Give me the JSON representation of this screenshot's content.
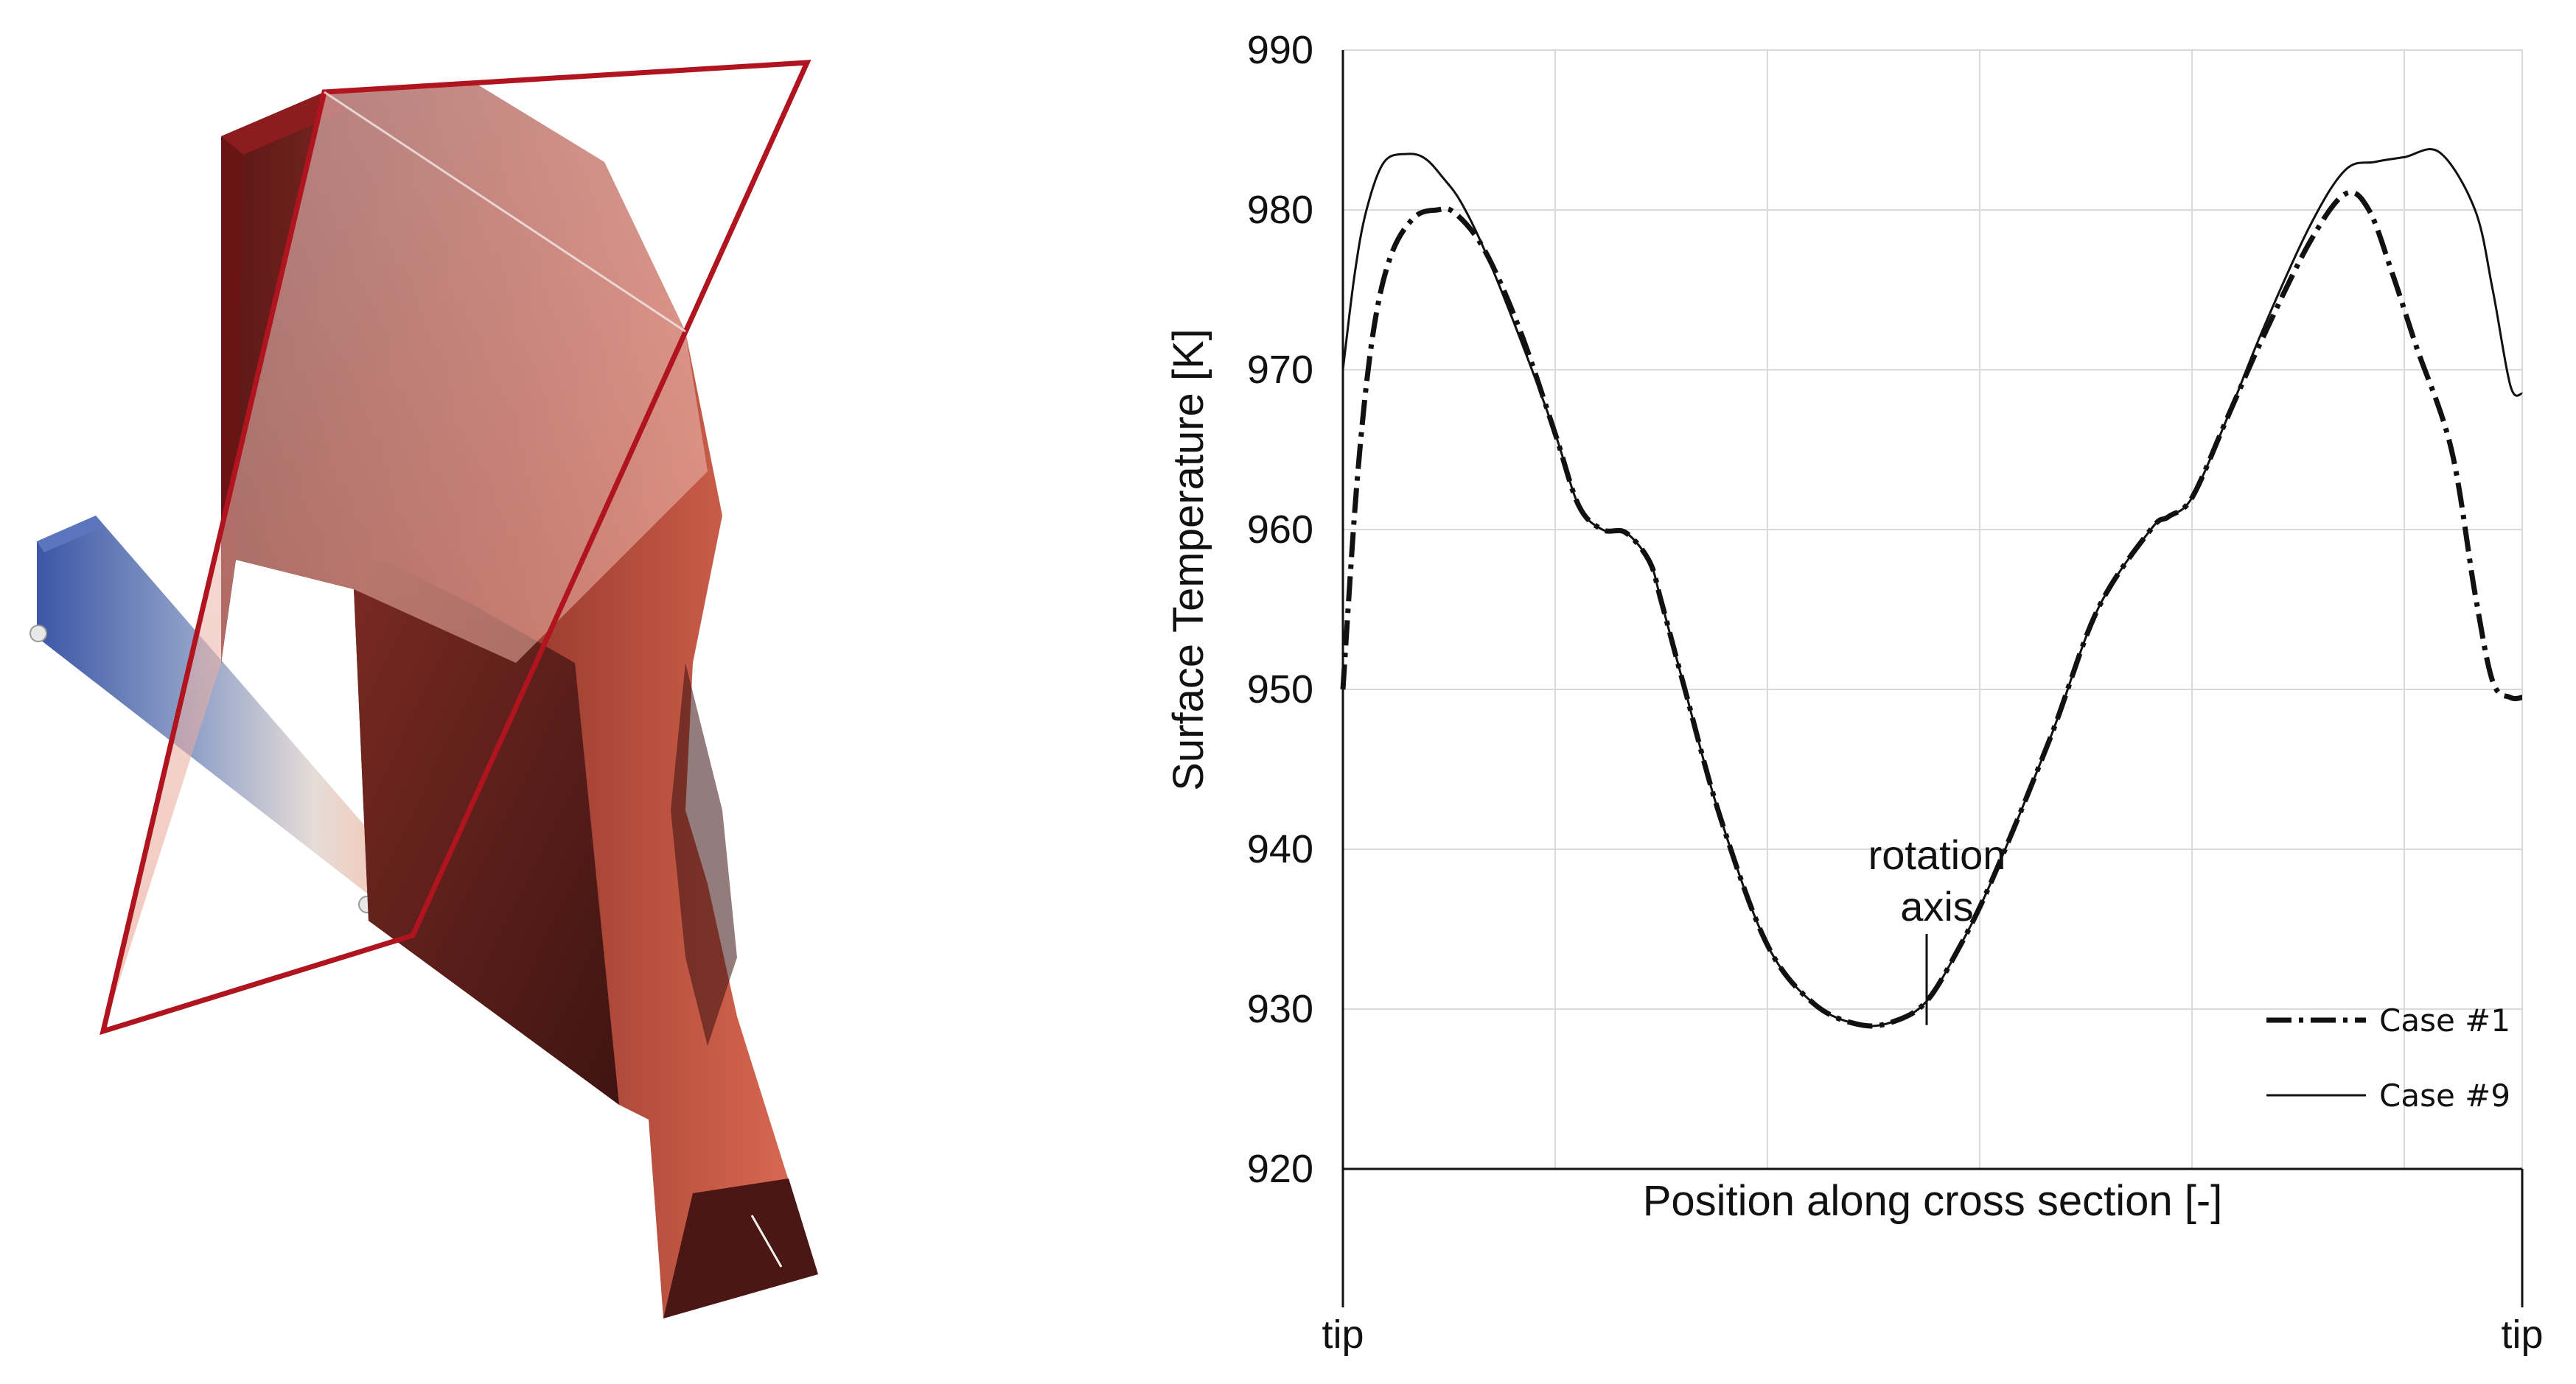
{
  "colors": {
    "frame_red": "#b0141e",
    "blade_dark": "#5a1a18",
    "blade_mid": "#b84a38",
    "blade_light": "#e0705a",
    "bar_blue": "#3d5aa8",
    "grid": "#d9d9d9"
  },
  "chart_data": {
    "type": "line",
    "title": "",
    "xlabel": "Position along cross section [-]",
    "ylabel": "Surface Temperature [K]",
    "ylim": [
      920,
      990
    ],
    "yticks": [
      920,
      930,
      940,
      950,
      960,
      970,
      980,
      990
    ],
    "xlim": [
      0,
      1
    ],
    "xtick_labels": [
      "tip",
      "tip"
    ],
    "x_grid_positions": [
      0.18,
      0.36,
      0.54,
      0.72,
      0.9
    ],
    "grid": true,
    "legend_position": "bottom-right",
    "annotation": {
      "text_line1": "rotation",
      "text_line2": "axis",
      "x": 0.495,
      "y": 929
    },
    "series": [
      {
        "name": "Case #1",
        "style": "dash-dot",
        "x": [
          0.0,
          0.012,
          0.025,
          0.04,
          0.06,
          0.08,
          0.095,
          0.12,
          0.15,
          0.18,
          0.2,
          0.22,
          0.24,
          0.26,
          0.27,
          0.29,
          0.32,
          0.36,
          0.4,
          0.44,
          0.47,
          0.495,
          0.52,
          0.55,
          0.6,
          0.64,
          0.685,
          0.7,
          0.72,
          0.75,
          0.78,
          0.82,
          0.85,
          0.87,
          0.89,
          0.91,
          0.94,
          0.96,
          0.975,
          0.99,
          1.0
        ],
        "y": [
          950,
          963,
          972,
          977,
          979.5,
          980,
          979.8,
          977.5,
          972.5,
          966,
          961.5,
          960,
          959.8,
          958,
          955.5,
          950,
          942,
          934,
          930.3,
          929,
          929.3,
          930.5,
          933.5,
          938,
          947,
          955,
          960,
          960.8,
          962,
          967,
          972,
          978,
          981,
          980,
          976,
          971.5,
          965,
          956,
          950.5,
          949.5,
          949.5
        ]
      },
      {
        "name": "Case #9",
        "style": "solid",
        "x": [
          0.0,
          0.01,
          0.02,
          0.035,
          0.055,
          0.07,
          0.085,
          0.1,
          0.12,
          0.15,
          0.18,
          0.2,
          0.22,
          0.24,
          0.26,
          0.27,
          0.29,
          0.32,
          0.36,
          0.4,
          0.44,
          0.47,
          0.495,
          0.52,
          0.55,
          0.6,
          0.64,
          0.685,
          0.7,
          0.72,
          0.75,
          0.78,
          0.82,
          0.85,
          0.875,
          0.9,
          0.93,
          0.96,
          0.975,
          0.99,
          1.0
        ],
        "y": [
          970,
          976,
          980,
          983,
          983.5,
          983.2,
          982,
          980.5,
          977.5,
          972,
          966,
          961.5,
          960,
          959.8,
          958,
          955.5,
          950,
          942,
          934,
          930.3,
          929,
          929.3,
          930.5,
          933.5,
          938,
          947,
          955,
          960,
          960.8,
          962,
          967,
          972.5,
          979,
          982.5,
          983,
          983.3,
          983.6,
          980,
          975,
          969,
          968.5
        ]
      }
    ]
  }
}
